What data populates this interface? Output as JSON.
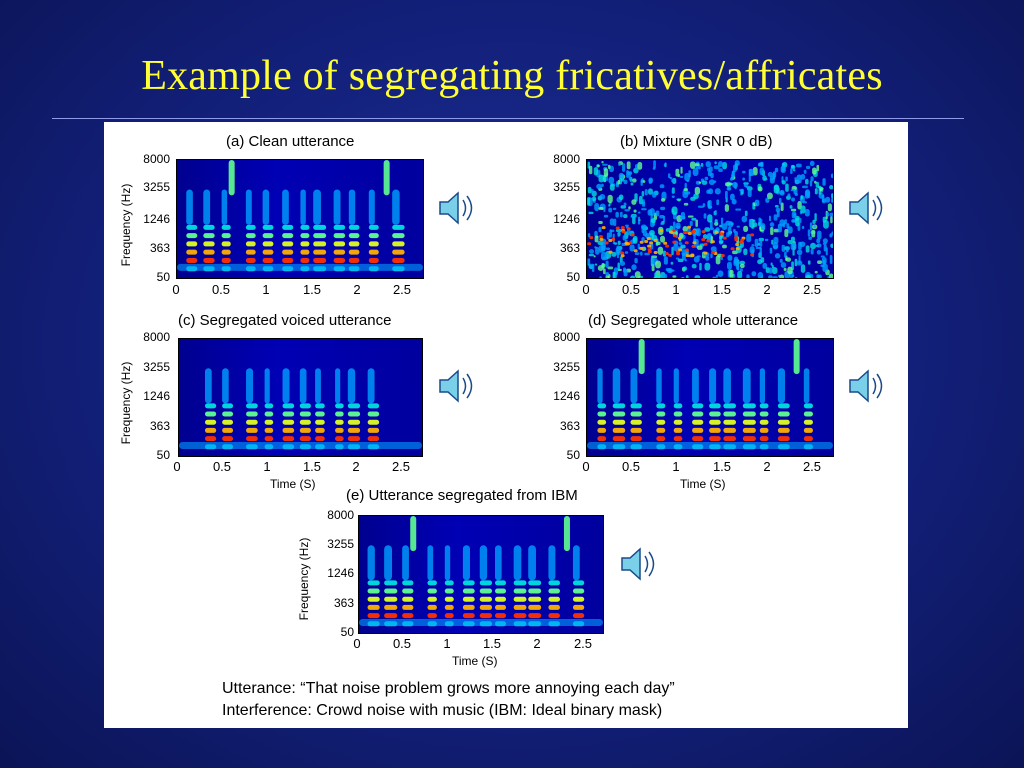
{
  "slide": {
    "title": "Example of segregating fricatives/affricates"
  },
  "y_ticks": [
    "8000",
    "3255",
    "1246",
    "363",
    "50"
  ],
  "x_ticks": [
    "0",
    "0.5",
    "1",
    "1.5",
    "2",
    "2.5"
  ],
  "y_axis_label": "Frequency (Hz)",
  "x_axis_label": "Time (S)",
  "spectrograms": [
    {
      "key": "a",
      "title": "(a) Clean utterance",
      "style": "clean",
      "has_xlabel": false,
      "has_arrows": true
    },
    {
      "key": "b",
      "title": "(b) Mixture (SNR 0 dB)",
      "style": "mixture",
      "has_xlabel": false,
      "has_arrows": false
    },
    {
      "key": "c",
      "title": "(c) Segregated voiced utterance",
      "style": "voiced",
      "has_xlabel": true,
      "has_arrows": false
    },
    {
      "key": "d",
      "title": "(d) Segregated whole utterance",
      "style": "whole",
      "has_xlabel": true,
      "has_arrows": true
    },
    {
      "key": "e",
      "title": "(e) Utterance segregated from IBM",
      "style": "whole",
      "has_xlabel": true,
      "has_arrows": false
    }
  ],
  "caption": {
    "line1": "Utterance: “That noise problem grows more annoying each day”",
    "line2": "Interference: Crowd noise with music (IBM: Ideal binary mask)"
  },
  "icons": {
    "speaker": "speaker-sound-icon"
  }
}
